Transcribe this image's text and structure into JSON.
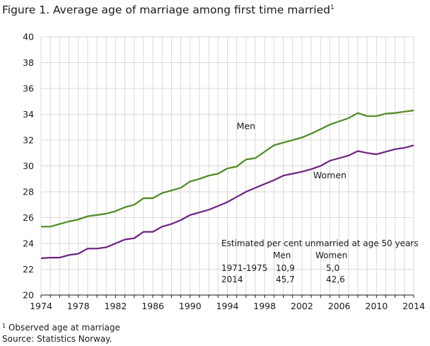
{
  "chart_data": {
    "type": "line",
    "title": "Figure 1. Average age of marriage among first time married",
    "title_note_marker": "1",
    "xlabel": "",
    "ylabel": "",
    "xlim": [
      1974,
      2014
    ],
    "ylim": [
      20,
      40
    ],
    "x_ticks": [
      1974,
      1978,
      1982,
      1986,
      1990,
      1994,
      1998,
      2002,
      2006,
      2010,
      2014
    ],
    "y_ticks": [
      20,
      22,
      24,
      26,
      28,
      30,
      32,
      34,
      36,
      38,
      40
    ],
    "grid": true,
    "x": [
      1974,
      1975,
      1976,
      1977,
      1978,
      1979,
      1980,
      1981,
      1982,
      1983,
      1984,
      1985,
      1986,
      1987,
      1988,
      1989,
      1990,
      1991,
      1992,
      1993,
      1994,
      1995,
      1996,
      1997,
      1998,
      1999,
      2000,
      2001,
      2002,
      2003,
      2004,
      2005,
      2006,
      2007,
      2008,
      2009,
      2010,
      2011,
      2012,
      2013,
      2014
    ],
    "series": [
      {
        "name": "Men",
        "color": "#4d8a1e",
        "values": [
          25.3,
          25.3,
          25.5,
          25.7,
          25.85,
          26.1,
          26.2,
          26.3,
          26.5,
          26.8,
          27.0,
          27.5,
          27.5,
          27.9,
          28.1,
          28.3,
          28.8,
          29.0,
          29.25,
          29.4,
          29.8,
          29.95,
          30.5,
          30.6,
          31.1,
          31.6,
          31.8,
          32.0,
          32.2,
          32.5,
          32.85,
          33.2,
          33.45,
          33.7,
          34.1,
          33.85,
          33.85,
          34.05,
          34.1,
          34.2,
          34.3
        ]
      },
      {
        "name": "Women",
        "color": "#6c2180",
        "values": [
          22.85,
          22.9,
          22.9,
          23.1,
          23.2,
          23.6,
          23.6,
          23.7,
          24.0,
          24.3,
          24.4,
          24.9,
          24.9,
          25.3,
          25.5,
          25.8,
          26.2,
          26.4,
          26.6,
          26.9,
          27.2,
          27.6,
          28.0,
          28.3,
          28.6,
          28.9,
          29.25,
          29.4,
          29.55,
          29.75,
          30.0,
          30.4,
          30.6,
          30.8,
          31.15,
          31.0,
          30.9,
          31.1,
          31.3,
          31.4,
          31.6
        ]
      }
    ]
  },
  "estimate_table": {
    "heading": "Estimated per cent unmarried at age 50 years",
    "col_men": "Men",
    "col_women": "Women",
    "rows": [
      {
        "period": "1971-1975",
        "men": "10,9",
        "women": "5,0"
      },
      {
        "period": "2014",
        "men": "45,7",
        "women": "42,6"
      }
    ]
  },
  "footnotes": {
    "note_marker": "1",
    "note": "Observed age at marriage",
    "source": "Source: Statistics Norway."
  }
}
